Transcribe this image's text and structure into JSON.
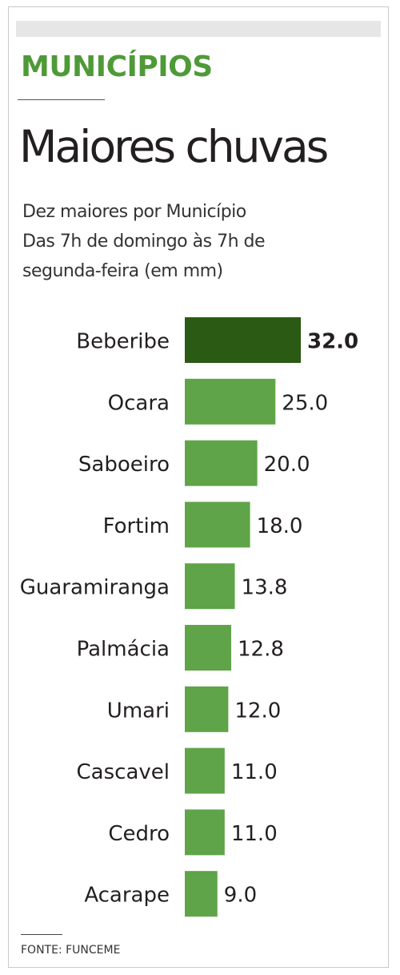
{
  "section_label": "MUNICÍPIOS",
  "title": "Maiores chuvas",
  "subtitle_lines": [
    "Dez maiores por Município",
    "Das 7h de domingo às 7h de",
    "segunda-feira (em mm)"
  ],
  "source": "FONTE: FUNCEME",
  "colors": {
    "accent": "#4f9a38",
    "bar": "#5fa448",
    "bar_highlight": "#2a5a14",
    "text": "#231f20"
  },
  "chart_data": {
    "type": "bar",
    "orientation": "horizontal",
    "categories": [
      "Beberibe",
      "Ocara",
      "Saboeiro",
      "Fortim",
      "Guaramiranga",
      "Palmácia",
      "Umari",
      "Cascavel",
      "Cedro",
      "Acarape"
    ],
    "values": [
      32.0,
      25.0,
      20.0,
      18.0,
      13.8,
      12.8,
      12.0,
      11.0,
      11.0,
      9.0
    ],
    "value_labels": [
      "32.0",
      "25.0",
      "20.0",
      "18.0",
      "13.8",
      "12.8",
      "12.0",
      "11.0",
      "11.0",
      "9.0"
    ],
    "highlight": "Beberibe",
    "unit": "mm",
    "xlim": [
      0,
      32
    ],
    "grid": false,
    "legend": "none"
  }
}
